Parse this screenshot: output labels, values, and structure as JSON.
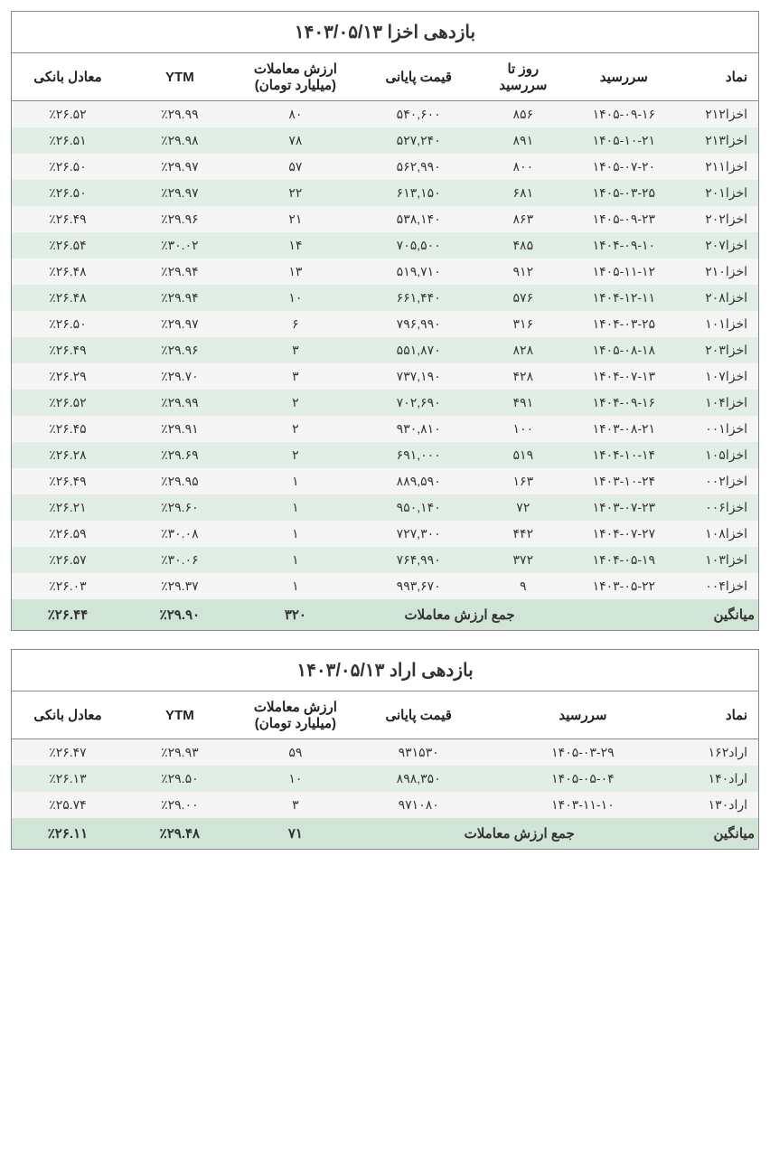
{
  "table1": {
    "title": "بازدهی اخزا   ۱۴۰۳/۰۵/۱۳",
    "headers": {
      "symbol": "نماد",
      "maturity": "سررسید",
      "days": "روز تا سررسید",
      "price": "قیمت پایانی",
      "value": "ارزش معاملات (میلیارد تومان)",
      "ytm": "YTM",
      "bank": "معادل بانکی"
    },
    "rows": [
      {
        "symbol": "اخزا۲۱۲",
        "maturity": "۱۴۰۵-۰۹-۱۶",
        "days": "۸۵۶",
        "price": "۵۴۰,۶۰۰",
        "value": "۸۰",
        "ytm": "٪۲۹.۹۹",
        "bank": "٪۲۶.۵۲"
      },
      {
        "symbol": "اخزا۲۱۳",
        "maturity": "۱۴۰۵-۱۰-۲۱",
        "days": "۸۹۱",
        "price": "۵۲۷,۲۴۰",
        "value": "۷۸",
        "ytm": "٪۲۹.۹۸",
        "bank": "٪۲۶.۵۱"
      },
      {
        "symbol": "اخزا۲۱۱",
        "maturity": "۱۴۰۵-۰۷-۲۰",
        "days": "۸۰۰",
        "price": "۵۶۲,۹۹۰",
        "value": "۵۷",
        "ytm": "٪۲۹.۹۷",
        "bank": "٪۲۶.۵۰"
      },
      {
        "symbol": "اخزا۲۰۱",
        "maturity": "۱۴۰۵-۰۳-۲۵",
        "days": "۶۸۱",
        "price": "۶۱۳,۱۵۰",
        "value": "۲۲",
        "ytm": "٪۲۹.۹۷",
        "bank": "٪۲۶.۵۰"
      },
      {
        "symbol": "اخزا۲۰۲",
        "maturity": "۱۴۰۵-۰۹-۲۳",
        "days": "۸۶۳",
        "price": "۵۳۸,۱۴۰",
        "value": "۲۱",
        "ytm": "٪۲۹.۹۶",
        "bank": "٪۲۶.۴۹"
      },
      {
        "symbol": "اخزا۲۰۷",
        "maturity": "۱۴۰۴-۰۹-۱۰",
        "days": "۴۸۵",
        "price": "۷۰۵,۵۰۰",
        "value": "۱۴",
        "ytm": "٪۳۰.۰۲",
        "bank": "٪۲۶.۵۴"
      },
      {
        "symbol": "اخزا۲۱۰",
        "maturity": "۱۴۰۵-۱۱-۱۲",
        "days": "۹۱۲",
        "price": "۵۱۹,۷۱۰",
        "value": "۱۳",
        "ytm": "٪۲۹.۹۴",
        "bank": "٪۲۶.۴۸"
      },
      {
        "symbol": "اخزا۲۰۸",
        "maturity": "۱۴۰۴-۱۲-۱۱",
        "days": "۵۷۶",
        "price": "۶۶۱,۴۴۰",
        "value": "۱۰",
        "ytm": "٪۲۹.۹۴",
        "bank": "٪۲۶.۴۸"
      },
      {
        "symbol": "اخزا۱۰۱",
        "maturity": "۱۴۰۴-۰۳-۲۵",
        "days": "۳۱۶",
        "price": "۷۹۶,۹۹۰",
        "value": "۶",
        "ytm": "٪۲۹.۹۷",
        "bank": "٪۲۶.۵۰"
      },
      {
        "symbol": "اخزا۲۰۳",
        "maturity": "۱۴۰۵-۰۸-۱۸",
        "days": "۸۲۸",
        "price": "۵۵۱,۸۷۰",
        "value": "۳",
        "ytm": "٪۲۹.۹۶",
        "bank": "٪۲۶.۴۹"
      },
      {
        "symbol": "اخزا۱۰۷",
        "maturity": "۱۴۰۴-۰۷-۱۳",
        "days": "۴۲۸",
        "price": "۷۳۷,۱۹۰",
        "value": "۳",
        "ytm": "٪۲۹.۷۰",
        "bank": "٪۲۶.۲۹"
      },
      {
        "symbol": "اخزا۱۰۴",
        "maturity": "۱۴۰۴-۰۹-۱۶",
        "days": "۴۹۱",
        "price": "۷۰۲,۶۹۰",
        "value": "۲",
        "ytm": "٪۲۹.۹۹",
        "bank": "٪۲۶.۵۲"
      },
      {
        "symbol": "اخزا۰۰۱",
        "maturity": "۱۴۰۳-۰۸-۲۱",
        "days": "۱۰۰",
        "price": "۹۳۰,۸۱۰",
        "value": "۲",
        "ytm": "٪۲۹.۹۱",
        "bank": "٪۲۶.۴۵"
      },
      {
        "symbol": "اخزا۱۰۵",
        "maturity": "۱۴۰۴-۱۰-۱۴",
        "days": "۵۱۹",
        "price": "۶۹۱,۰۰۰",
        "value": "۲",
        "ytm": "٪۲۹.۶۹",
        "bank": "٪۲۶.۲۸"
      },
      {
        "symbol": "اخزا۰۰۲",
        "maturity": "۱۴۰۳-۱۰-۲۴",
        "days": "۱۶۳",
        "price": "۸۸۹,۵۹۰",
        "value": "۱",
        "ytm": "٪۲۹.۹۵",
        "bank": "٪۲۶.۴۹"
      },
      {
        "symbol": "اخزا۰۰۶",
        "maturity": "۱۴۰۳-۰۷-۲۳",
        "days": "۷۲",
        "price": "۹۵۰,۱۴۰",
        "value": "۱",
        "ytm": "٪۲۹.۶۰",
        "bank": "٪۲۶.۲۱"
      },
      {
        "symbol": "اخزا۱۰۸",
        "maturity": "۱۴۰۴-۰۷-۲۷",
        "days": "۴۴۲",
        "price": "۷۲۷,۳۰۰",
        "value": "۱",
        "ytm": "٪۳۰.۰۸",
        "bank": "٪۲۶.۵۹"
      },
      {
        "symbol": "اخزا۱۰۳",
        "maturity": "۱۴۰۴-۰۵-۱۹",
        "days": "۳۷۲",
        "price": "۷۶۴,۹۹۰",
        "value": "۱",
        "ytm": "٪۳۰.۰۶",
        "bank": "٪۲۶.۵۷"
      },
      {
        "symbol": "اخزا۰۰۴",
        "maturity": "۱۴۰۳-۰۵-۲۲",
        "days": "۹",
        "price": "۹۹۳,۶۷۰",
        "value": "۱",
        "ytm": "٪۲۹.۳۷",
        "bank": "٪۲۶.۰۳"
      }
    ],
    "summary": {
      "label": "میانگین",
      "totalLabel": "جمع ارزش معاملات",
      "total": "۳۲۰",
      "ytm": "٪۲۹.۹۰",
      "bank": "٪۲۶.۴۴"
    }
  },
  "table2": {
    "title": "بازدهی اراد    ۱۴۰۳/۰۵/۱۳",
    "headers": {
      "symbol": "نماد",
      "maturity": "سررسید",
      "price": "قیمت پایانی",
      "value": "ارزش معاملات (میلیارد تومان)",
      "ytm": "YTM",
      "bank": "معادل بانکی"
    },
    "rows": [
      {
        "symbol": "اراد۱۶۲",
        "maturity": "۱۴۰۵-۰۳-۲۹",
        "price": "۹۳۱۵۳۰",
        "value": "۵۹",
        "ytm": "٪۲۹.۹۳",
        "bank": "٪۲۶.۴۷"
      },
      {
        "symbol": "اراد۱۴۰",
        "maturity": "۱۴۰۵-۰۵-۰۴",
        "price": "۸۹۸,۳۵۰",
        "value": "۱۰",
        "ytm": "٪۲۹.۵۰",
        "bank": "٪۲۶.۱۳"
      },
      {
        "symbol": "اراد۱۳۰",
        "maturity": "۱۴۰۳-۱۱-۱۰",
        "price": "۹۷۱۰۸۰",
        "value": "۳",
        "ytm": "٪۲۹.۰۰",
        "bank": "٪۲۵.۷۴"
      }
    ],
    "summary": {
      "label": "میانگین",
      "totalLabel": "جمع ارزش معاملات",
      "total": "۷۱",
      "ytm": "٪۲۹.۴۸",
      "bank": "٪۲۶.۱۱"
    }
  }
}
